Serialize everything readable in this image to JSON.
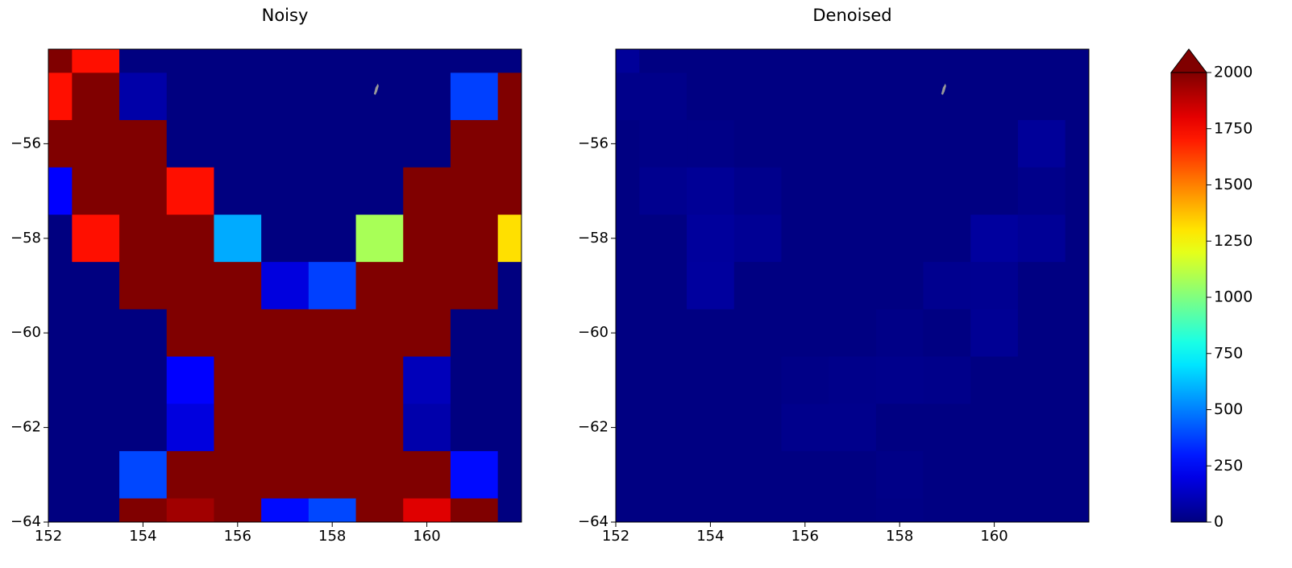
{
  "chart_data": [
    {
      "type": "heatmap",
      "title": "Noisy",
      "x": [
        152,
        153,
        154,
        155,
        156,
        157,
        158,
        159,
        160,
        161,
        162
      ],
      "y": [
        -54,
        -55,
        -56,
        -57,
        -58,
        -59,
        -60,
        -61,
        -62,
        -63,
        -64
      ],
      "values": [
        [
          2000,
          1720,
          0,
          0,
          0,
          0,
          0,
          0,
          0,
          0,
          0
        ],
        [
          1720,
          2000,
          80,
          0,
          0,
          0,
          0,
          0,
          0,
          375,
          2000
        ],
        [
          2000,
          2000,
          2000,
          0,
          0,
          0,
          0,
          0,
          0,
          2000,
          2000
        ],
        [
          250,
          2000,
          2000,
          1720,
          0,
          0,
          0,
          0,
          2000,
          2000,
          2000
        ],
        [
          0,
          1720,
          2000,
          2000,
          585,
          0,
          0,
          1080,
          2000,
          2000,
          1310
        ],
        [
          0,
          0,
          2000,
          2000,
          2000,
          185,
          375,
          2000,
          2000,
          2000,
          0
        ],
        [
          0,
          0,
          0,
          2000,
          2000,
          2000,
          2000,
          2000,
          2000,
          0,
          0
        ],
        [
          0,
          0,
          0,
          250,
          2000,
          2000,
          2000,
          2000,
          115,
          0,
          0
        ],
        [
          0,
          0,
          0,
          185,
          2000,
          2000,
          2000,
          2000,
          85,
          0,
          0
        ],
        [
          0,
          0,
          390,
          2000,
          2000,
          2000,
          2000,
          2000,
          2000,
          270,
          0
        ],
        [
          0,
          0,
          2000,
          1935,
          2000,
          270,
          390,
          2000,
          1810,
          2000,
          0
        ]
      ],
      "xlim": [
        152,
        162
      ],
      "ylim": [
        -64,
        -54
      ],
      "xticks": [
        152,
        154,
        156,
        158,
        160
      ],
      "yticks": [
        {
          "value": -64,
          "label": "−64"
        },
        {
          "value": -62,
          "label": "−62"
        },
        {
          "value": -60,
          "label": "−60"
        },
        {
          "value": -58,
          "label": "−58"
        },
        {
          "value": -56,
          "label": "−56"
        }
      ]
    },
    {
      "type": "heatmap",
      "title": "Denoised",
      "x": [
        152,
        153,
        154,
        155,
        156,
        157,
        158,
        159,
        160,
        161,
        162
      ],
      "y": [
        -54,
        -55,
        -56,
        -57,
        -58,
        -59,
        -60,
        -61,
        -62,
        -63,
        -64
      ],
      "values": [
        [
          50,
          5,
          5,
          5,
          5,
          5,
          5,
          5,
          5,
          5,
          5
        ],
        [
          20,
          20,
          5,
          5,
          5,
          5,
          5,
          5,
          5,
          5,
          5
        ],
        [
          5,
          15,
          15,
          5,
          5,
          5,
          5,
          5,
          5,
          50,
          5
        ],
        [
          5,
          30,
          45,
          25,
          5,
          5,
          5,
          5,
          5,
          20,
          5
        ],
        [
          5,
          5,
          55,
          40,
          5,
          5,
          5,
          5,
          60,
          45,
          5
        ],
        [
          5,
          5,
          60,
          5,
          5,
          5,
          5,
          30,
          35,
          5,
          5
        ],
        [
          5,
          5,
          5,
          5,
          5,
          5,
          15,
          5,
          40,
          5,
          5
        ],
        [
          5,
          5,
          5,
          5,
          15,
          20,
          25,
          20,
          5,
          5,
          5
        ],
        [
          5,
          5,
          5,
          5,
          25,
          25,
          5,
          5,
          5,
          5,
          5
        ],
        [
          5,
          5,
          5,
          5,
          5,
          5,
          15,
          5,
          5,
          5,
          5
        ],
        [
          5,
          5,
          5,
          5,
          5,
          5,
          10,
          5,
          5,
          5,
          5
        ]
      ],
      "xlim": [
        152,
        162
      ],
      "ylim": [
        -64,
        -54
      ],
      "xticks": [
        152,
        154,
        156,
        158,
        160
      ],
      "yticks": [
        {
          "value": -64,
          "label": "−64"
        },
        {
          "value": -62,
          "label": "−62"
        },
        {
          "value": -60,
          "label": "−60"
        },
        {
          "value": -58,
          "label": "−58"
        },
        {
          "value": -56,
          "label": "−56"
        }
      ]
    }
  ],
  "colorbar": {
    "colormap": "jet",
    "extend": "max",
    "clim": [
      0,
      2000
    ],
    "ticks": [
      0,
      250,
      500,
      750,
      1000,
      1250,
      1500,
      1750,
      2000
    ]
  }
}
